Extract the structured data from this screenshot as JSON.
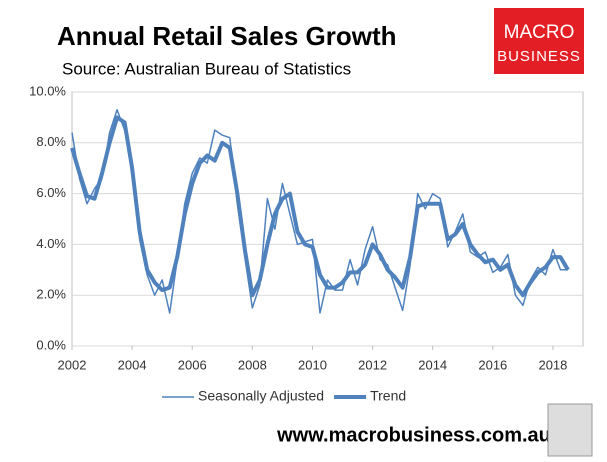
{
  "chart_data": {
    "type": "line",
    "title": "Annual Retail Sales Growth",
    "subtitle": "Source: Australian Bureau of Statistics",
    "x": [
      2002,
      2002.25,
      2002.5,
      2002.75,
      2003,
      2003.25,
      2003.5,
      2003.75,
      2004,
      2004.25,
      2004.5,
      2004.75,
      2005,
      2005.25,
      2005.5,
      2005.75,
      2006,
      2006.25,
      2006.5,
      2006.75,
      2007,
      2007.25,
      2007.5,
      2007.75,
      2008,
      2008.25,
      2008.5,
      2008.75,
      2009,
      2009.25,
      2009.5,
      2009.75,
      2010,
      2010.25,
      2010.5,
      2010.75,
      2011,
      2011.25,
      2011.5,
      2011.75,
      2012,
      2012.25,
      2012.5,
      2012.75,
      2013,
      2013.25,
      2013.5,
      2013.75,
      2014,
      2014.25,
      2014.5,
      2014.75,
      2015,
      2015.25,
      2015.5,
      2015.75,
      2016,
      2016.25,
      2016.5,
      2016.75,
      2017,
      2017.25,
      2017.5,
      2017.75,
      2018,
      2018.25,
      2018.5
    ],
    "series": [
      {
        "name": "Seasonally Adjusted",
        "color": "#4f81bd",
        "width": 1.5,
        "values": [
          8.4,
          6.6,
          5.6,
          6.2,
          6.6,
          8.4,
          9.3,
          8.5,
          7.2,
          4.2,
          2.8,
          2.0,
          2.6,
          1.3,
          3.4,
          5.6,
          6.8,
          7.4,
          7.2,
          8.5,
          8.3,
          8.2,
          5.6,
          3.5,
          1.5,
          2.4,
          5.8,
          4.6,
          6.4,
          5.2,
          4.0,
          4.1,
          4.2,
          1.3,
          2.6,
          2.2,
          2.2,
          3.4,
          2.4,
          3.8,
          4.7,
          3.4,
          3.2,
          2.3,
          1.4,
          3.2,
          6.0,
          5.4,
          6.0,
          5.8,
          3.9,
          4.5,
          5.2,
          3.7,
          3.5,
          3.7,
          2.9,
          3.1,
          3.6,
          2.0,
          1.6,
          2.6,
          3.1,
          2.8,
          3.8,
          3.0,
          3.0
        ]
      },
      {
        "name": "Trend",
        "color": "#4f81bd",
        "width": 4,
        "values": [
          7.8,
          6.8,
          5.9,
          5.8,
          6.8,
          8.0,
          9.0,
          8.8,
          7.0,
          4.5,
          3.0,
          2.5,
          2.2,
          2.3,
          3.5,
          5.2,
          6.4,
          7.2,
          7.5,
          7.3,
          8.0,
          7.8,
          6.0,
          3.8,
          2.0,
          2.6,
          4.0,
          5.2,
          5.8,
          6.0,
          4.5,
          4.0,
          3.9,
          2.8,
          2.3,
          2.3,
          2.5,
          2.9,
          2.9,
          3.2,
          4.0,
          3.6,
          3.0,
          2.7,
          2.3,
          3.5,
          5.5,
          5.6,
          5.6,
          5.6,
          4.2,
          4.4,
          4.8,
          4.0,
          3.6,
          3.3,
          3.4,
          3.0,
          3.2,
          2.4,
          2.0,
          2.5,
          2.9,
          3.1,
          3.5,
          3.5,
          3.0
        ]
      }
    ],
    "xlim": [
      2002,
      2019
    ],
    "xticks": [
      2002,
      2004,
      2006,
      2008,
      2010,
      2012,
      2014,
      2016,
      2018
    ],
    "ylim": [
      0,
      10
    ],
    "yticks": [
      {
        "value": 0,
        "label": "0.0%"
      },
      {
        "value": 2,
        "label": "2.0%"
      },
      {
        "value": 4,
        "label": "4.0%"
      },
      {
        "value": 6,
        "label": "6.0%"
      },
      {
        "value": 8,
        "label": "8.0%"
      },
      {
        "value": 10,
        "label": "10.0%"
      }
    ],
    "grid": true
  },
  "logo": [
    "MACRO",
    "BUSINESS"
  ],
  "footer": "www.macrobusiness.com.au"
}
